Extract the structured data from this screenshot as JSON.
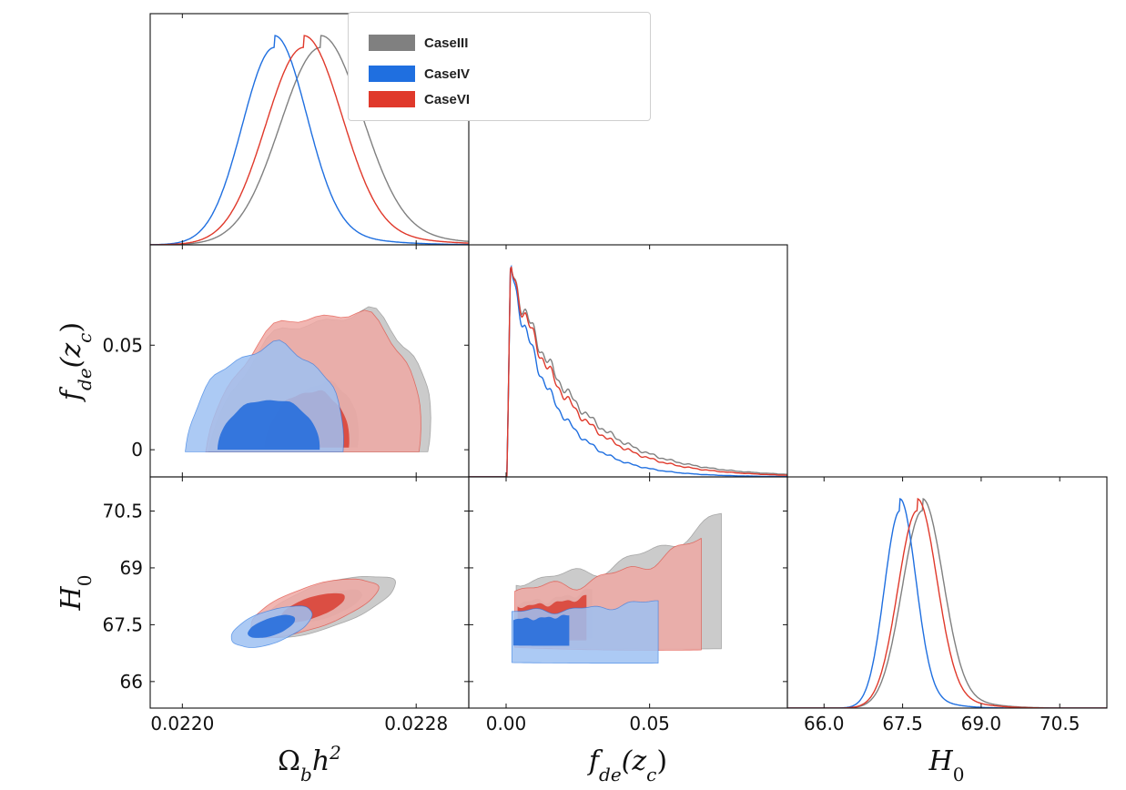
{
  "chart_data": {
    "type": "corner-plot",
    "parameters": [
      {
        "key": "obh2",
        "label_base": "Ω",
        "label_sub": "b",
        "label_main": "h",
        "label_sup": "2",
        "range": [
          0.02189,
          0.02298
        ],
        "ticks": [
          0.022,
          0.0228
        ],
        "tick_labels": [
          "0.0220",
          "0.0228"
        ]
      },
      {
        "key": "fde",
        "label_base": "f",
        "label_sub": "de",
        "label_paren": "(z",
        "label_sub2": "c",
        "label_close": ")",
        "range": [
          -0.013,
          0.098
        ],
        "ticks": [
          0.0,
          0.05
        ],
        "tick_labels_x": [
          "0.00",
          "0.05"
        ],
        "tick_labels_y": [
          "0",
          "0.05"
        ]
      },
      {
        "key": "H0",
        "label_base": "H",
        "label_sub": "0",
        "range": [
          65.3,
          71.4
        ],
        "ticks": [
          66.0,
          67.5,
          69.0,
          70.5
        ],
        "tick_labels": [
          "66.0",
          "67.5",
          "69.0",
          "70.5"
        ],
        "tick_labels_y": [
          "66",
          "67.5",
          "69",
          "70.5"
        ]
      }
    ],
    "series": [
      {
        "name": "CaseIII",
        "color": "#808080",
        "fill_color": "#c2c2c2",
        "inner_color": "#a3a3a3",
        "marginals": {
          "obh2": {
            "mean": 0.022474,
            "sigma": 0.00014
          },
          "fde": {
            "peak": 0.0015,
            "tail_scale": 0.022
          },
          "H0": {
            "mean": 67.88,
            "sigma": 0.39
          }
        }
      },
      {
        "name": "CaseIV",
        "color": "#1f6fe0",
        "fill_color": "#9dc1f2",
        "inner_color": "#2d72dc",
        "marginals": {
          "obh2": {
            "mean": 0.022315,
            "sigma": 0.00011
          },
          "fde": {
            "peak": 0.0015,
            "tail_scale": 0.015
          },
          "H0": {
            "mean": 67.45,
            "sigma": 0.3
          }
        }
      },
      {
        "name": "CaseVI",
        "color": "#e0392b",
        "fill_color": "#efa9a4",
        "inner_color": "#d8372a",
        "marginals": {
          "obh2": {
            "mean": 0.022415,
            "sigma": 0.00013
          },
          "fde": {
            "peak": 0.0015,
            "tail_scale": 0.02
          },
          "H0": {
            "mean": 67.78,
            "sigma": 0.37
          }
        }
      }
    ],
    "legend": {
      "position": "top-right of top-left panel",
      "entries": [
        "CaseIII",
        "CaseIV",
        "CaseVI"
      ]
    }
  }
}
